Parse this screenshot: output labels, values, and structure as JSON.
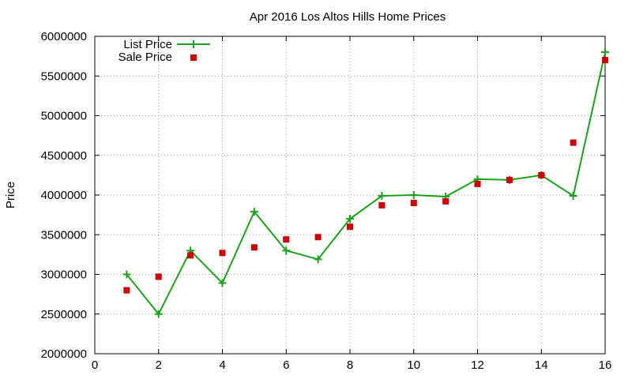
{
  "chart_data": {
    "type": "line",
    "title": "Apr 2016 Los Altos Hills Home Prices",
    "xlabel": "",
    "ylabel": "Price",
    "xlim": [
      0,
      16
    ],
    "ylim": [
      2000000,
      6000000
    ],
    "xticks": [
      0,
      2,
      4,
      6,
      8,
      10,
      12,
      14,
      16
    ],
    "xtick_labels": [
      "0",
      "2",
      "4",
      "6",
      "8",
      "10",
      "12",
      "14",
      "16"
    ],
    "yticks": [
      2000000,
      2500000,
      3000000,
      3500000,
      4000000,
      4500000,
      5000000,
      5500000,
      6000000
    ],
    "ytick_labels": [
      "2000000",
      "2500000",
      "3000000",
      "3500000",
      "4000000",
      "4500000",
      "5000000",
      "5500000",
      "6000000"
    ],
    "grid": true,
    "legend_position": "top-left",
    "series": [
      {
        "name": "List Price",
        "style": "line-with-plus-markers",
        "color": "#1aa31a",
        "x": [
          1,
          2,
          3,
          4,
          5,
          6,
          7,
          8,
          9,
          10,
          11,
          12,
          13,
          14,
          15,
          16
        ],
        "y": [
          3000000,
          2500000,
          3300000,
          2890000,
          3790000,
          3300000,
          3190000,
          3700000,
          3990000,
          4000000,
          3980000,
          4200000,
          4190000,
          4250000,
          3990000,
          5800000
        ]
      },
      {
        "name": "Sale Price",
        "style": "square-markers",
        "color": "#cc0000",
        "x": [
          1,
          2,
          3,
          4,
          5,
          6,
          7,
          8,
          9,
          10,
          11,
          12,
          13,
          14,
          15,
          16
        ],
        "y": [
          2800000,
          2970000,
          3240000,
          3270000,
          3340000,
          3440000,
          3470000,
          3600000,
          3870000,
          3900000,
          3920000,
          4140000,
          4190000,
          4250000,
          4660000,
          5700000
        ]
      }
    ]
  }
}
